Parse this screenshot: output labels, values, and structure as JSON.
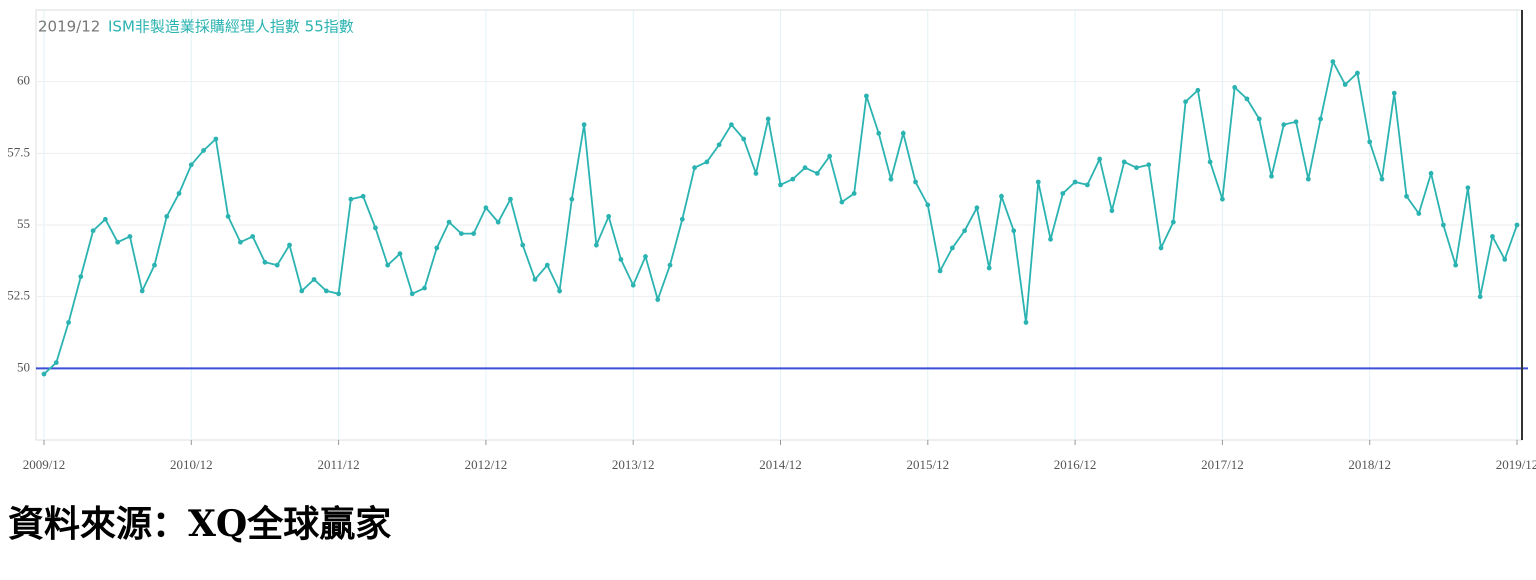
{
  "chart_data": {
    "type": "line",
    "date_label": "2019/12",
    "title": "ISM非製造業採購經理人指數 55指數",
    "source": "資料來源：XQ全球贏家",
    "categories": [
      "2009/12",
      null,
      null,
      null,
      null,
      null,
      null,
      null,
      null,
      null,
      null,
      null,
      "2010/12",
      null,
      null,
      null,
      null,
      null,
      null,
      null,
      null,
      null,
      null,
      null,
      "2011/12",
      null,
      null,
      null,
      null,
      null,
      null,
      null,
      null,
      null,
      null,
      null,
      "2012/12",
      null,
      null,
      null,
      null,
      null,
      null,
      null,
      null,
      null,
      null,
      null,
      "2013/12",
      null,
      null,
      null,
      null,
      null,
      null,
      null,
      null,
      null,
      null,
      null,
      "2014/12",
      null,
      null,
      null,
      null,
      null,
      null,
      null,
      null,
      null,
      null,
      null,
      "2015/12",
      null,
      null,
      null,
      null,
      null,
      null,
      null,
      null,
      null,
      null,
      null,
      "2016/12",
      null,
      null,
      null,
      null,
      null,
      null,
      null,
      null,
      null,
      null,
      null,
      "2017/12",
      null,
      null,
      null,
      null,
      null,
      null,
      null,
      null,
      null,
      null,
      null,
      "2018/12",
      null,
      null,
      null,
      null,
      null,
      null,
      null,
      null,
      null,
      null,
      null,
      "2019/12"
    ],
    "series": [
      {
        "name": "ISM非製造業採購經理人指數",
        "color": "#2bb3b1",
        "values": [
          49.8,
          50.2,
          51.6,
          53.2,
          54.8,
          55.2,
          54.4,
          54.6,
          52.7,
          53.6,
          55.3,
          56.1,
          57.1,
          57.6,
          58.0,
          55.3,
          54.4,
          54.6,
          53.7,
          53.6,
          54.3,
          52.7,
          53.1,
          52.7,
          52.6,
          55.9,
          56.0,
          54.9,
          53.6,
          54.0,
          52.6,
          52.8,
          54.2,
          55.1,
          54.7,
          54.7,
          55.6,
          55.1,
          55.9,
          54.3,
          53.1,
          53.6,
          52.7,
          55.9,
          58.5,
          54.3,
          55.3,
          53.8,
          52.9,
          53.9,
          52.4,
          53.6,
          55.2,
          57.0,
          57.2,
          57.8,
          58.5,
          58.0,
          56.8,
          58.7,
          56.4,
          56.6,
          57.0,
          56.8,
          57.4,
          55.8,
          56.1,
          59.5,
          58.2,
          56.6,
          58.2,
          56.5,
          55.7,
          53.4,
          54.2,
          54.8,
          55.6,
          53.5,
          56.0,
          54.8,
          51.6,
          56.5,
          54.5,
          56.1,
          56.5,
          56.4,
          57.3,
          55.5,
          57.2,
          57.0,
          57.1,
          54.2,
          55.1,
          59.3,
          59.7,
          57.2,
          55.9,
          59.8,
          59.4,
          58.7,
          56.7,
          58.5,
          58.6,
          56.6,
          58.7,
          60.7,
          59.9,
          60.3,
          57.9,
          56.6,
          59.6,
          56.0,
          55.4,
          56.8,
          55.0,
          53.6,
          56.3,
          52.5,
          54.6,
          53.8,
          55.0
        ]
      }
    ],
    "reference_line": {
      "value": 50,
      "color": "#3a4fd6"
    },
    "ylim": [
      47.5,
      62.5
    ],
    "yticks": [
      50,
      52.5,
      55,
      57.5,
      60
    ],
    "grid": true
  }
}
